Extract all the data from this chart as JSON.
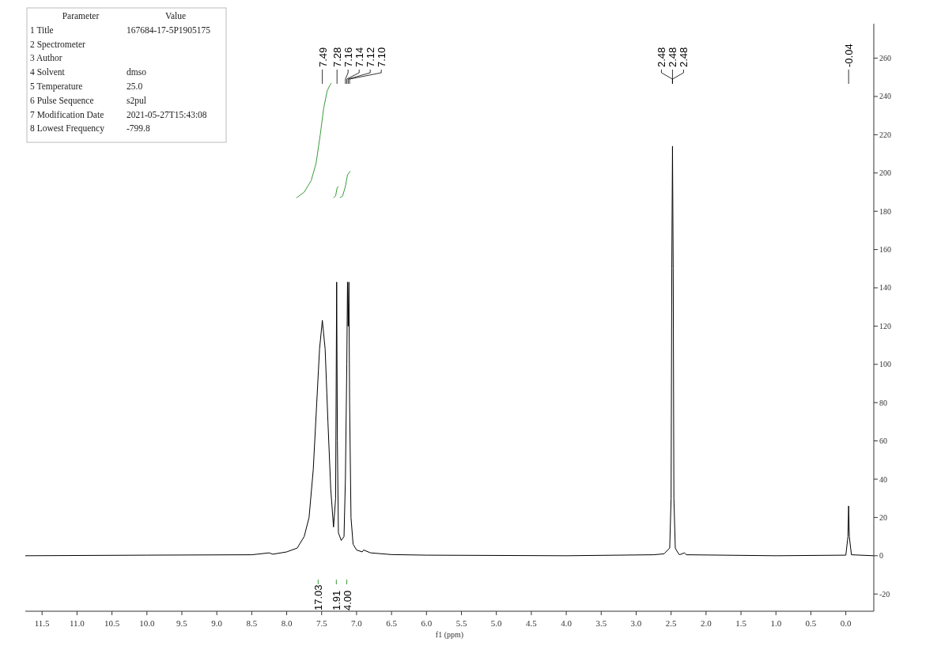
{
  "chart_data": {
    "type": "line",
    "xlabel": "f1 (ppm)",
    "xlim": [
      11.74,
      -0.4
    ],
    "ylim": [
      -29,
      278
    ],
    "xticks": [
      11.5,
      {
        "value": 11,
        "label": "11.0"
      },
      10.5,
      {
        "value": 10,
        "label": "10.0"
      },
      9.5,
      {
        "value": 9,
        "label": "9.0"
      },
      8.5,
      {
        "value": 8,
        "label": "8.0"
      },
      7.5,
      {
        "value": 7,
        "label": "7.0"
      },
      6.5,
      {
        "value": 6,
        "label": "6.0"
      },
      5.5,
      {
        "value": 5,
        "label": "5.0"
      },
      4.5,
      {
        "value": 4,
        "label": "4.0"
      },
      3.5,
      {
        "value": 3,
        "label": "3.0"
      },
      2.5,
      {
        "value": 2,
        "label": "2.0"
      },
      1.5,
      {
        "value": 1,
        "label": "1.0"
      },
      0.5,
      {
        "value": 0,
        "label": "0.0"
      }
    ],
    "yticks": [
      -20,
      0,
      20,
      40,
      60,
      80,
      100,
      120,
      140,
      160,
      180,
      200,
      220,
      240,
      260
    ],
    "grid": false,
    "marker": "none",
    "line_style": "solid",
    "series": [
      {
        "color": "#000000",
        "x": [
          11.74,
          10,
          8.5,
          8.25,
          8.2,
          8,
          7.85,
          7.75,
          7.68,
          7.62,
          7.57,
          7.53,
          7.49,
          7.45,
          7.41,
          7.37,
          7.33,
          7.3,
          7.285,
          7.275,
          7.26,
          7.22,
          7.18,
          7.16,
          7.14,
          7.13,
          7.12,
          7.11,
          7.1,
          7.08,
          7.05,
          7,
          6.92,
          6.9,
          6.8,
          6.5,
          6,
          4,
          2.75,
          2.6,
          2.52,
          2.5,
          2.49,
          2.48,
          2.47,
          2.46,
          2.44,
          2.41,
          2.38,
          2.31,
          2.28,
          1,
          0,
          -0.03,
          -0.04,
          -0.05,
          -0.08,
          -0.4
        ],
        "values": [
          0,
          0.3,
          0.5,
          1.5,
          0.8,
          2,
          4,
          10,
          20,
          45,
          80,
          108,
          123,
          108,
          70,
          35,
          15,
          30,
          143,
          60,
          12,
          8,
          10,
          40,
          100,
          143,
          120,
          143,
          80,
          20,
          6,
          3,
          2,
          3,
          1.5,
          0.6,
          0.3,
          0,
          0.5,
          1,
          4,
          30,
          150,
          214,
          150,
          30,
          4,
          2,
          0.5,
          1.5,
          0.5,
          0,
          0.3,
          10,
          26,
          10,
          0.5,
          0
        ]
      },
      {
        "color": "#3c9a3c",
        "x": [
          7.86,
          7.75,
          7.65,
          7.58,
          7.52,
          7.47,
          7.42,
          7.38,
          7.36
        ],
        "values": [
          187,
          190,
          196,
          205,
          220,
          234,
          243,
          246,
          247
        ]
      },
      {
        "color": "#3c9a3c",
        "x": [
          7.33,
          7.3,
          7.28,
          7.26
        ],
        "values": [
          187,
          188,
          192,
          193
        ]
      },
      {
        "color": "#3c9a3c",
        "x": [
          7.24,
          7.2,
          7.16,
          7.13,
          7.09
        ],
        "values": [
          187,
          188,
          193,
          199,
          201
        ]
      }
    ],
    "annotations": [
      "Parameter",
      "Value",
      "1 Title",
      "167684-17-5P1905175",
      "2 Spectrometer",
      "3 Author",
      "4 Solvent",
      "dmso",
      "5 Temperature",
      "25.0",
      "6 Pulse Sequence",
      "s2pul",
      "7 Modification Date",
      "2021-05-27T15:43:08",
      "8 Lowest Frequency",
      "-799.8",
      {
        "text": "7.49",
        "x": 7.49
      },
      {
        "text": "7.28",
        "x": 7.28
      },
      {
        "text": "7.16",
        "x": 7.16
      },
      {
        "text": "7.14",
        "x": 7.14
      },
      {
        "text": "7.12",
        "x": 7.12
      },
      {
        "text": "7.10",
        "x": 7.1
      },
      {
        "text": "2.48",
        "x": 2.48
      },
      {
        "text": "2.48",
        "x": 2.48
      },
      {
        "text": "2.48",
        "x": 2.48
      },
      {
        "text": "-0.04",
        "x": -0.04
      },
      {
        "text": "17.03",
        "x": 7.55
      },
      {
        "text": "1.91",
        "x": 7.29
      },
      {
        "text": "4.00",
        "x": 7.14
      }
    ]
  }
}
